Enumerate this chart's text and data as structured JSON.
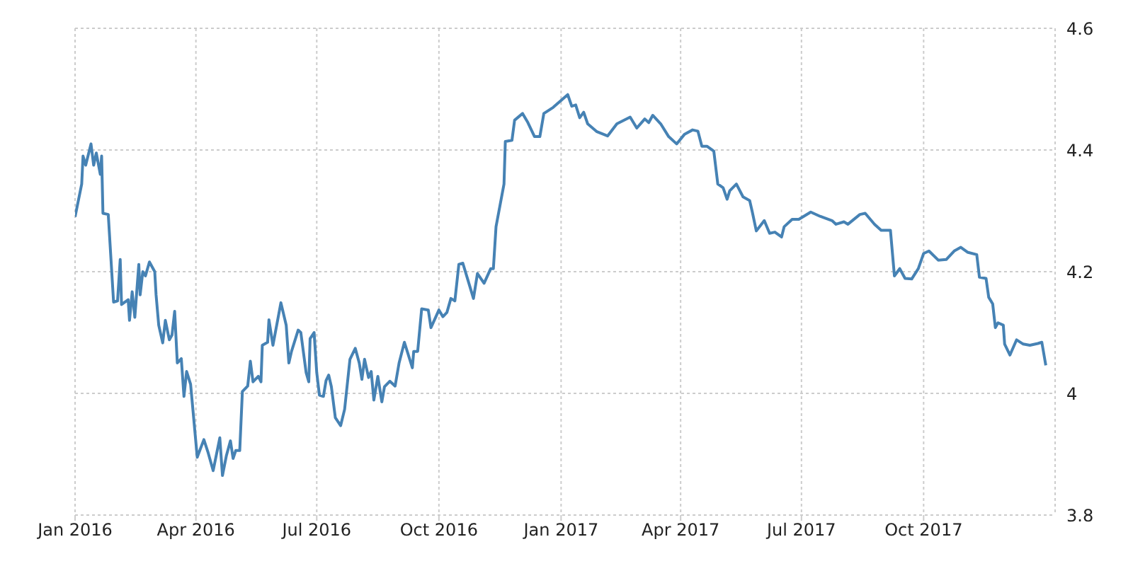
{
  "chart_data": {
    "type": "line",
    "color": "#4682b4",
    "grid": true,
    "xlim": [
      "2016-01-01",
      "2018-01-08"
    ],
    "ylim": [
      3.8,
      4.6
    ],
    "yticks": [
      3.8,
      4,
      4.2,
      4.4,
      4.6
    ],
    "xticks": [
      {
        "value": "2016-01-01",
        "label": "Jan 2016"
      },
      {
        "value": "2016-04-01",
        "label": "Apr 2016"
      },
      {
        "value": "2016-07-01",
        "label": "Jul 2016"
      },
      {
        "value": "2016-10-01",
        "label": "Oct 2016"
      },
      {
        "value": "2017-01-01",
        "label": "Jan 2017"
      },
      {
        "value": "2017-04-01",
        "label": "Apr 2017"
      },
      {
        "value": "2017-07-01",
        "label": "Jul 2017"
      },
      {
        "value": "2017-10-01",
        "label": "Oct 2017"
      }
    ],
    "x": [
      "2016-01-01",
      "2016-01-06",
      "2016-01-07",
      "2016-01-09",
      "2016-01-13",
      "2016-01-15",
      "2016-01-17",
      "2016-01-20",
      "2016-01-21",
      "2016-01-22",
      "2016-01-26",
      "2016-01-30",
      "2016-02-02",
      "2016-02-04",
      "2016-02-05",
      "2016-02-10",
      "2016-02-11",
      "2016-02-13",
      "2016-02-15",
      "2016-02-18",
      "2016-02-19",
      "2016-02-21",
      "2016-02-23",
      "2016-02-26",
      "2016-03-01",
      "2016-03-02",
      "2016-03-04",
      "2016-03-07",
      "2016-03-09",
      "2016-03-12",
      "2016-03-14",
      "2016-03-16",
      "2016-03-18",
      "2016-03-21",
      "2016-03-23",
      "2016-03-25",
      "2016-03-28",
      "2016-04-02",
      "2016-04-07",
      "2016-04-10",
      "2016-04-14",
      "2016-04-19",
      "2016-04-21",
      "2016-04-24",
      "2016-04-27",
      "2016-04-29",
      "2016-05-01",
      "2016-05-04",
      "2016-05-06",
      "2016-05-10",
      "2016-05-12",
      "2016-05-14",
      "2016-05-18",
      "2016-05-20",
      "2016-05-21",
      "2016-05-25",
      "2016-05-26",
      "2016-05-29",
      "2016-06-04",
      "2016-06-08",
      "2016-06-10",
      "2016-06-12",
      "2016-06-17",
      "2016-06-19",
      "2016-06-23",
      "2016-06-25",
      "2016-06-26",
      "2016-06-29",
      "2016-07-01",
      "2016-07-03",
      "2016-07-06",
      "2016-07-08",
      "2016-07-10",
      "2016-07-12",
      "2016-07-15",
      "2016-07-19",
      "2016-07-22",
      "2016-07-26",
      "2016-07-30",
      "2016-08-02",
      "2016-08-04",
      "2016-08-06",
      "2016-08-09",
      "2016-08-11",
      "2016-08-13",
      "2016-08-16",
      "2016-08-19",
      "2016-08-21",
      "2016-08-25",
      "2016-08-29",
      "2016-09-01",
      "2016-09-05",
      "2016-09-11",
      "2016-09-12",
      "2016-09-15",
      "2016-09-18",
      "2016-09-23",
      "2016-09-25",
      "2016-10-01",
      "2016-10-04",
      "2016-10-07",
      "2016-10-10",
      "2016-10-13",
      "2016-10-16",
      "2016-10-19",
      "2016-10-23",
      "2016-10-27",
      "2016-10-30",
      "2016-11-04",
      "2016-11-09",
      "2016-11-11",
      "2016-11-13",
      "2016-11-19",
      "2016-11-20",
      "2016-11-25",
      "2016-11-27",
      "2016-12-03",
      "2016-12-07",
      "2016-12-12",
      "2016-12-16",
      "2016-12-19",
      "2016-12-26",
      "2017-01-06",
      "2017-01-09",
      "2017-01-12",
      "2017-01-15",
      "2017-01-18",
      "2017-01-21",
      "2017-01-28",
      "2017-02-05",
      "2017-02-12",
      "2017-02-22",
      "2017-02-27",
      "2017-03-05",
      "2017-03-08",
      "2017-03-11",
      "2017-03-17",
      "2017-03-23",
      "2017-03-29",
      "2017-04-04",
      "2017-04-10",
      "2017-04-14",
      "2017-04-17",
      "2017-04-21",
      "2017-04-26",
      "2017-04-29",
      "2017-05-03",
      "2017-05-06",
      "2017-05-08",
      "2017-05-13",
      "2017-05-18",
      "2017-05-23",
      "2017-05-25",
      "2017-05-28",
      "2017-06-03",
      "2017-06-07",
      "2017-06-11",
      "2017-06-16",
      "2017-06-18",
      "2017-06-24",
      "2017-06-29",
      "2017-07-08",
      "2017-07-15",
      "2017-07-24",
      "2017-07-27",
      "2017-08-02",
      "2017-08-05",
      "2017-08-14",
      "2017-08-18",
      "2017-08-25",
      "2017-08-30",
      "2017-09-06",
      "2017-09-09",
      "2017-09-13",
      "2017-09-17",
      "2017-09-22",
      "2017-09-27",
      "2017-10-01",
      "2017-10-05",
      "2017-10-12",
      "2017-10-18",
      "2017-10-24",
      "2017-10-29",
      "2017-11-03",
      "2017-11-10",
      "2017-11-12",
      "2017-11-17",
      "2017-11-19",
      "2017-11-22",
      "2017-11-24",
      "2017-11-26",
      "2017-11-30",
      "2017-12-01",
      "2017-12-05",
      "2017-12-10",
      "2017-12-15",
      "2017-12-20",
      "2017-12-26",
      "2017-12-29",
      "2018-01-01"
    ],
    "values": [
      4.29,
      4.344,
      4.39,
      4.375,
      4.41,
      4.375,
      4.395,
      4.36,
      4.39,
      4.296,
      4.294,
      4.15,
      4.152,
      4.22,
      4.146,
      4.154,
      4.12,
      4.167,
      4.125,
      4.212,
      4.162,
      4.2,
      4.193,
      4.216,
      4.2,
      4.162,
      4.112,
      4.083,
      4.12,
      4.088,
      4.096,
      4.135,
      4.05,
      4.057,
      3.995,
      4.036,
      4.015,
      3.895,
      3.924,
      3.904,
      3.873,
      3.927,
      3.865,
      3.898,
      3.922,
      3.893,
      3.906,
      3.906,
      4.003,
      4.012,
      4.053,
      4.019,
      4.028,
      4.019,
      4.079,
      4.084,
      4.121,
      4.079,
      4.149,
      4.112,
      4.05,
      4.069,
      4.104,
      4.1,
      4.034,
      4.019,
      4.09,
      4.1,
      4.034,
      3.997,
      3.995,
      4.021,
      4.03,
      4.011,
      3.96,
      3.947,
      3.974,
      4.056,
      4.074,
      4.05,
      4.023,
      4.056,
      4.026,
      4.036,
      3.989,
      4.028,
      3.986,
      4.011,
      4.02,
      4.012,
      4.05,
      4.084,
      4.042,
      4.069,
      4.069,
      4.139,
      4.137,
      4.108,
      4.137,
      4.126,
      4.133,
      4.156,
      4.152,
      4.212,
      4.214,
      4.185,
      4.156,
      4.197,
      4.181,
      4.205,
      4.205,
      4.274,
      4.344,
      4.414,
      4.416,
      4.449,
      4.46,
      4.445,
      4.422,
      4.422,
      4.46,
      4.47,
      4.491,
      4.472,
      4.474,
      4.453,
      4.462,
      4.443,
      4.43,
      4.423,
      4.443,
      4.454,
      4.436,
      4.451,
      4.445,
      4.457,
      4.443,
      4.422,
      4.41,
      4.426,
      4.433,
      4.431,
      4.406,
      4.406,
      4.398,
      4.344,
      4.338,
      4.319,
      4.333,
      4.344,
      4.323,
      4.317,
      4.298,
      4.267,
      4.284,
      4.263,
      4.265,
      4.257,
      4.274,
      4.286,
      4.286,
      4.298,
      4.291,
      4.284,
      4.278,
      4.282,
      4.278,
      4.294,
      4.296,
      4.278,
      4.268,
      4.268,
      4.193,
      4.205,
      4.189,
      4.188,
      4.205,
      4.23,
      4.234,
      4.219,
      4.22,
      4.234,
      4.24,
      4.232,
      4.228,
      4.191,
      4.189,
      4.158,
      4.147,
      4.108,
      4.116,
      4.112,
      4.081,
      4.063,
      4.088,
      4.081,
      4.079,
      4.082,
      4.084,
      4.046
    ]
  }
}
